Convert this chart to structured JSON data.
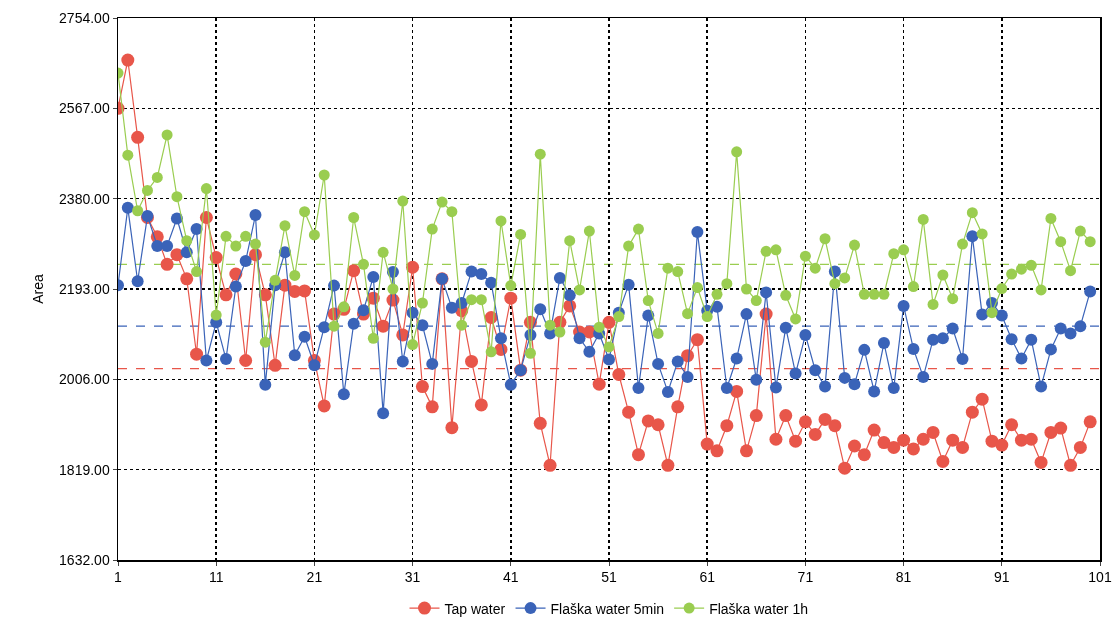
{
  "chart_data": {
    "type": "line",
    "ylabel": "Area",
    "x": [
      1,
      2,
      3,
      4,
      5,
      6,
      7,
      8,
      9,
      10,
      11,
      12,
      13,
      14,
      15,
      16,
      17,
      18,
      19,
      20,
      21,
      22,
      23,
      24,
      25,
      26,
      27,
      28,
      29,
      30,
      31,
      32,
      33,
      34,
      35,
      36,
      37,
      38,
      39,
      40,
      41,
      42,
      43,
      44,
      45,
      46,
      47,
      48,
      49,
      50,
      51,
      52,
      53,
      54,
      55,
      56,
      57,
      58,
      59,
      60,
      61,
      62,
      63,
      64,
      65,
      66,
      67,
      68,
      69,
      70,
      71,
      72,
      73,
      74,
      75,
      76,
      77,
      78,
      79,
      80,
      81,
      82,
      83,
      84,
      85,
      86,
      87,
      88,
      89,
      90,
      91,
      92,
      93,
      94,
      95,
      96,
      97,
      98,
      99,
      100
    ],
    "xlim": [
      1,
      101
    ],
    "xticks": [
      1,
      11,
      21,
      31,
      41,
      51,
      61,
      71,
      81,
      91,
      101
    ],
    "ylim": [
      1632,
      2754
    ],
    "yticks": [
      {
        "value": 1632,
        "label": "1632.00"
      },
      {
        "value": 1819,
        "label": "1819.00"
      },
      {
        "value": 2006,
        "label": "2006.00"
      },
      {
        "value": 2193,
        "label": "2193.00"
      },
      {
        "value": 2380,
        "label": "2380.00"
      },
      {
        "value": 2567,
        "label": "2567.00"
      },
      {
        "value": 2754,
        "label": "2754.00"
      }
    ],
    "grid": true,
    "legend": "bottom",
    "marker": "circle",
    "line_style": "solid",
    "series": [
      {
        "name": "Tap water",
        "color": "#e8564a",
        "values": [
          2567,
          2667,
          2507,
          2341,
          2301,
          2244,
          2264,
          2214,
          2058,
          2341,
          2258,
          2181,
          2224,
          2045,
          2264,
          2181,
          2035,
          2201,
          2188,
          2189,
          2045,
          1951,
          2141,
          2151,
          2231,
          2141,
          2174,
          2116,
          2170,
          2098,
          2238,
          1991,
          1949,
          2214,
          1906,
          2148,
          2043,
          1953,
          2134,
          2068,
          2174,
          2025,
          2124,
          1915,
          1828,
          2124,
          2158,
          2104,
          2104,
          1996,
          2124,
          2016,
          1938,
          1850,
          1920,
          1912,
          1828,
          1949,
          2055,
          2088,
          1872,
          1858,
          1910,
          1981,
          1858,
          1931,
          2141,
          1882,
          1931,
          1878,
          1918,
          1892,
          1923,
          1910,
          1822,
          1868,
          1850,
          1901,
          1875,
          1865,
          1880,
          1862,
          1882,
          1896,
          1836,
          1880,
          1865,
          1938,
          1965,
          1878,
          1870,
          1912,
          1880,
          1882,
          1834,
          1896,
          1905,
          1828,
          1865,
          1918
        ]
      },
      {
        "name": "Flaška water 5min",
        "color": "#3a63b8",
        "values": [
          2201,
          2361,
          2209,
          2344,
          2282,
          2282,
          2339,
          2269,
          2317,
          2045,
          2124,
          2048,
          2198,
          2251,
          2346,
          1995,
          2201,
          2269,
          2056,
          2094,
          2035,
          2114,
          2200,
          1975,
          2121,
          2149,
          2218,
          1936,
          2228,
          2043,
          2144,
          2118,
          2038,
          2214,
          2154,
          2164,
          2229,
          2224,
          2206,
          2091,
          1995,
          2025,
          2098,
          2151,
          2101,
          2216,
          2180,
          2091,
          2063,
          2101,
          2047,
          2144,
          2202,
          1988,
          2138,
          2038,
          1980,
          2043,
          2011,
          2311,
          2148,
          2156,
          1988,
          2049,
          2141,
          2005,
          2186,
          1989,
          2113,
          2018,
          2098,
          2025,
          1991,
          2229,
          2009,
          1996,
          2067,
          1981,
          2081,
          1988,
          2158,
          2069,
          2011,
          2088,
          2091,
          2111,
          2048,
          2302,
          2140,
          2164,
          2138,
          2089,
          2049,
          2088,
          1991,
          2068,
          2111,
          2101,
          2116,
          2188
        ]
      },
      {
        "name": "Flaška water 1h",
        "color": "#9acd50",
        "values": [
          2640,
          2470,
          2355,
          2397,
          2424,
          2512,
          2384,
          2293,
          2229,
          2401,
          2139,
          2302,
          2282,
          2302,
          2286,
          2083,
          2211,
          2324,
          2221,
          2353,
          2305,
          2429,
          2116,
          2156,
          2341,
          2244,
          2091,
          2269,
          2193,
          2375,
          2078,
          2164,
          2317,
          2373,
          2353,
          2118,
          2171,
          2171,
          2063,
          2334,
          2200,
          2306,
          2060,
          2472,
          2118,
          2104,
          2293,
          2191,
          2313,
          2114,
          2073,
          2136,
          2282,
          2317,
          2169,
          2101,
          2236,
          2229,
          2142,
          2196,
          2136,
          2182,
          2204,
          2477,
          2193,
          2169,
          2271,
          2274,
          2180,
          2131,
          2261,
          2236,
          2297,
          2204,
          2216,
          2284,
          2182,
          2182,
          2182,
          2266,
          2274,
          2198,
          2337,
          2161,
          2222,
          2173,
          2286,
          2351,
          2307,
          2144,
          2194,
          2224,
          2234,
          2242,
          2191,
          2339,
          2291,
          2231,
          2313,
          2291
        ]
      }
    ],
    "ref_lines": [
      {
        "axis": "y",
        "value": 2028,
        "color": "#e8564a",
        "line_style": "dashed"
      },
      {
        "axis": "y",
        "value": 2116,
        "color": "#3a63b8",
        "line_style": "dashed"
      },
      {
        "axis": "y",
        "value": 2244,
        "color": "#9acd50",
        "line_style": "dashed"
      }
    ]
  }
}
